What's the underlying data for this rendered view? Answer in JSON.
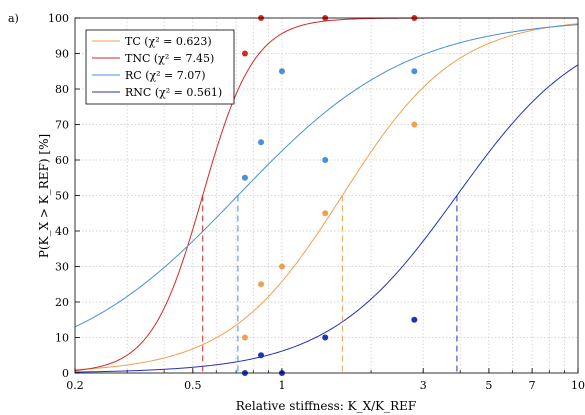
{
  "chart_data": {
    "type": "scatter",
    "panel_label": "a)",
    "xlabel": "Relative stiffness: K_X/K_REF",
    "ylabel": "P(K_X > K_REF) [%]",
    "x_scale": "log",
    "xlim": [
      0.2,
      10
    ],
    "ylim": [
      0,
      100
    ],
    "x_ticks": [
      0.2,
      0.5,
      1,
      3,
      5,
      7,
      10
    ],
    "x_tick_labels": [
      "0.2",
      "0.5",
      "1",
      "3",
      "5",
      "7",
      "10"
    ],
    "y_ticks": [
      0,
      10,
      20,
      30,
      40,
      50,
      60,
      70,
      80,
      90,
      100
    ],
    "y_tick_labels": [
      "0",
      "10",
      "20",
      "30",
      "40",
      "50",
      "60",
      "70",
      "80",
      "90",
      "100"
    ],
    "grid": true,
    "legend_position": "top-left",
    "series": [
      {
        "name": "TC (χ² = 0.623)",
        "color": "#f0a050",
        "median": 1.6,
        "fit_steepness": 2.25,
        "points": [
          {
            "x": 0.75,
            "y": 10
          },
          {
            "x": 0.85,
            "y": 25
          },
          {
            "x": 1.0,
            "y": 30
          },
          {
            "x": 1.4,
            "y": 45
          },
          {
            "x": 2.8,
            "y": 70
          }
        ]
      },
      {
        "name": "TNC (χ² = 7.45)",
        "color": "#d62728",
        "median": 0.54,
        "fit_steepness": 5.0,
        "points": [
          {
            "x": 0.75,
            "y": 90
          },
          {
            "x": 0.85,
            "y": 100
          },
          {
            "x": 1.4,
            "y": 100
          },
          {
            "x": 2.8,
            "y": 100
          }
        ]
      },
      {
        "name": "RC (χ² = 7.07)",
        "color": "#4a8fdc",
        "median": 0.71,
        "fit_steepness": 1.5,
        "points": [
          {
            "x": 0.75,
            "y": 55
          },
          {
            "x": 0.85,
            "y": 65
          },
          {
            "x": 1.0,
            "y": 85
          },
          {
            "x": 1.4,
            "y": 60
          },
          {
            "x": 2.8,
            "y": 85
          }
        ]
      },
      {
        "name": "RNC (χ² = 0.561)",
        "color": "#2233bb",
        "median": 3.9,
        "fit_steepness": 2.0,
        "points": [
          {
            "x": 0.75,
            "y": 0
          },
          {
            "x": 0.85,
            "y": 5
          },
          {
            "x": 1.0,
            "y": 0
          },
          {
            "x": 1.4,
            "y": 10
          },
          {
            "x": 2.8,
            "y": 15
          }
        ]
      }
    ]
  }
}
